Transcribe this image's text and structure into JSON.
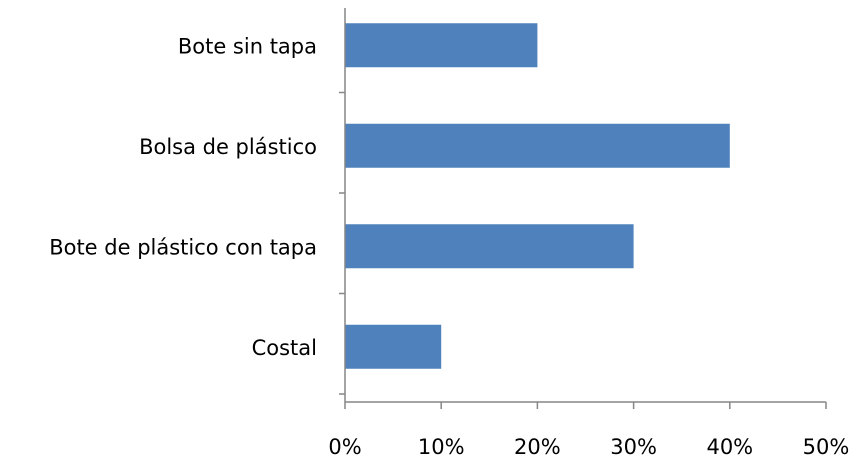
{
  "chart_data": {
    "type": "bar",
    "orientation": "horizontal",
    "categories": [
      "Bote sin tapa",
      "Bolsa de plástico",
      "Bote de plástico con tapa",
      "Costal"
    ],
    "values": [
      20,
      40,
      30,
      10
    ],
    "unit": "%",
    "xlim": [
      0,
      50
    ],
    "x_ticks": [
      0,
      10,
      20,
      30,
      40,
      50
    ],
    "x_tick_labels": [
      "0%",
      "10%",
      "20%",
      "30%",
      "40%",
      "50%"
    ],
    "title": "",
    "xlabel": "",
    "ylabel": "",
    "grid": false,
    "legend": "none",
    "bar_color": "#4f81bd"
  }
}
